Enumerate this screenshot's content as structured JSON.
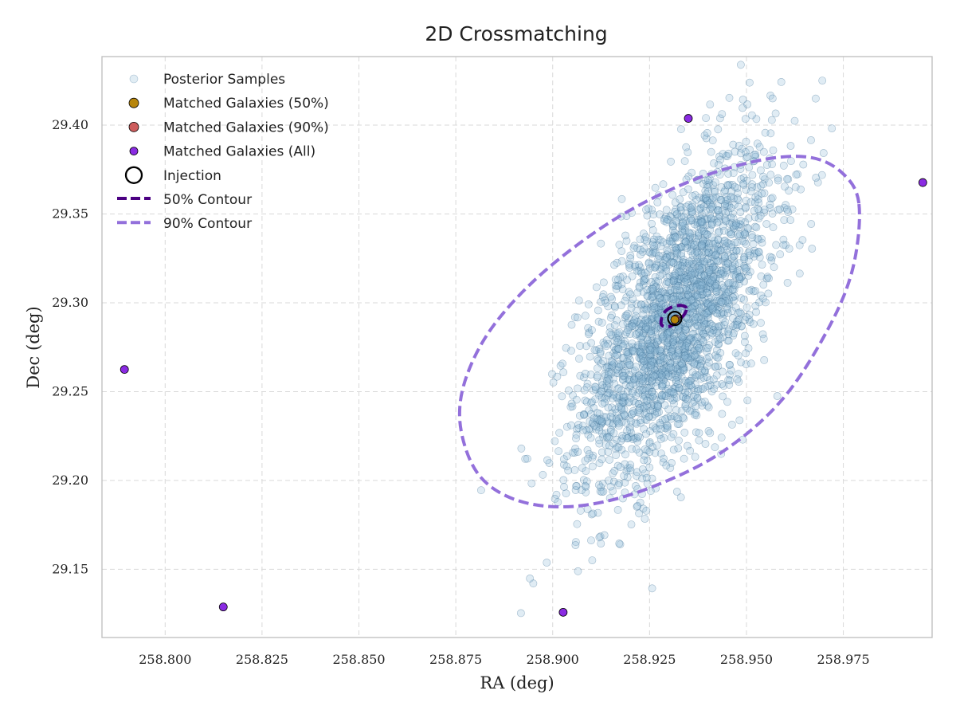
{
  "chart_data": {
    "type": "scatter",
    "title": "2D Crossmatching",
    "xlabel": "RA (deg)",
    "ylabel": "Dec (deg)",
    "xlim": [
      258.7837,
      258.9979
    ],
    "ylim": [
      29.1116,
      29.4386
    ],
    "x_ticks": [
      258.8,
      258.825,
      258.85,
      258.875,
      258.9,
      258.925,
      258.95,
      258.975
    ],
    "x_tick_labels": [
      "258.800",
      "258.825",
      "258.850",
      "258.875",
      "258.900",
      "258.925",
      "258.950",
      "258.975"
    ],
    "y_ticks": [
      29.15,
      29.2,
      29.25,
      29.3,
      29.35,
      29.4
    ],
    "y_tick_labels": [
      "29.15",
      "29.20",
      "29.25",
      "29.30",
      "29.35",
      "29.40"
    ],
    "grid": true,
    "legend_position": "top-left",
    "legend": [
      {
        "label": "Posterior Samples",
        "kind": "dot",
        "color": "#a9cbe0"
      },
      {
        "label": "Matched Galaxies (50%)",
        "kind": "dot",
        "color": "#b8860b"
      },
      {
        "label": "Matched Galaxies (90%)",
        "kind": "dot",
        "color": "#cd5c5c"
      },
      {
        "label": "Matched Galaxies (All)",
        "kind": "dot",
        "color": "#8a2be2"
      },
      {
        "label": "Injection",
        "kind": "ring",
        "color": "#000000"
      },
      {
        "label": "50% Contour",
        "kind": "dash",
        "color": "#4b0082"
      },
      {
        "label": "90% Contour",
        "kind": "dash",
        "color": "#9370db"
      }
    ],
    "posterior_samples": {
      "count": 2500,
      "center": [
        258.932,
        29.292
      ],
      "sigma_ra": 0.0125,
      "sigma_dec": 0.0457,
      "correlation": 0.62,
      "color": "#8fb9d6"
    },
    "matched_galaxies_all": [
      {
        "ra": 258.7895,
        "dec": 29.2625
      },
      {
        "ra": 258.815,
        "dec": 29.1288
      },
      {
        "ra": 258.9027,
        "dec": 29.1258
      },
      {
        "ra": 258.935,
        "dec": 29.4038
      },
      {
        "ra": 258.9955,
        "dec": 29.3677
      }
    ],
    "matched_galaxies_50": [
      {
        "ra": 258.9315,
        "dec": 29.2905
      }
    ],
    "matched_galaxies_90": [
      {
        "ra": 258.9318,
        "dec": 29.291
      }
    ],
    "injection": {
      "ra": 258.9315,
      "dec": 29.2912
    },
    "contour_90": {
      "center": [
        258.9302,
        29.282
      ],
      "points": [
        [
          258.979,
          29.356
        ],
        [
          258.9745,
          29.3735
        ],
        [
          258.966,
          29.382
        ],
        [
          258.953,
          29.38
        ],
        [
          258.935,
          29.368
        ],
        [
          258.916,
          29.347
        ],
        [
          258.898,
          29.318
        ],
        [
          258.885,
          29.288
        ],
        [
          258.878,
          29.26
        ],
        [
          258.876,
          29.235
        ],
        [
          258.879,
          29.21
        ],
        [
          258.885,
          29.195
        ],
        [
          258.895,
          29.1865
        ],
        [
          258.908,
          29.186
        ],
        [
          258.924,
          29.195
        ],
        [
          258.943,
          29.215
        ],
        [
          258.959,
          29.245
        ],
        [
          258.971,
          29.285
        ],
        [
          258.9775,
          29.32
        ]
      ],
      "color": "#9370db"
    },
    "contour_50": {
      "center": [
        258.9315,
        29.2915
      ],
      "points": [
        [
          258.9345,
          29.297
        ],
        [
          258.933,
          29.2985
        ],
        [
          258.931,
          29.2978
        ],
        [
          258.9292,
          29.2955
        ],
        [
          258.9282,
          29.292
        ],
        [
          258.928,
          29.288
        ],
        [
          258.929,
          29.2865
        ],
        [
          258.9305,
          29.287
        ],
        [
          258.932,
          29.2895
        ],
        [
          258.9338,
          29.293
        ]
      ],
      "color": "#4b0082"
    }
  }
}
